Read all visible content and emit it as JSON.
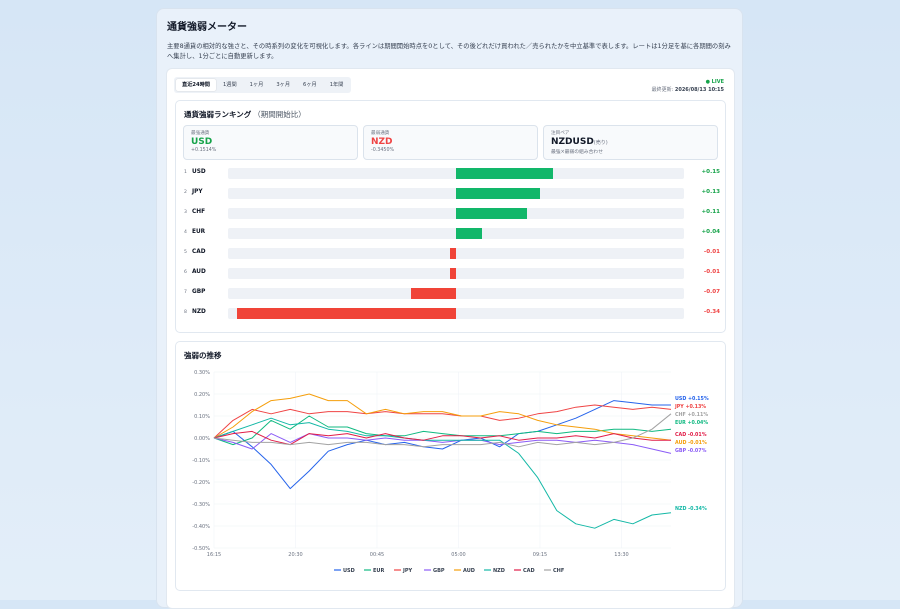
{
  "page": {
    "title": "通貨強弱メーター",
    "description": "主要8通貨の相対的な強さと、その時系列の変化を可視化します。各ラインは期間開始時点を0として、その後どれだけ買われた／売られたかを中立基準で表します。レートは1分足を基に各期間の刻みへ集計し、1分ごとに自動更新します。"
  },
  "tabs": [
    {
      "label": "直近24時間",
      "active": true
    },
    {
      "label": "1週間",
      "active": false
    },
    {
      "label": "1ヶ月",
      "active": false
    },
    {
      "label": "3ヶ月",
      "active": false
    },
    {
      "label": "6ヶ月",
      "active": false
    },
    {
      "label": "1年間",
      "active": false
    }
  ],
  "status": {
    "live": "● LIVE",
    "updated_label": "最終更新:",
    "updated_value": "2026/08/13 10:15"
  },
  "ranking": {
    "title": "通貨強弱ランキング",
    "subtitle": "（期間開始比）",
    "strongest": {
      "label": "最強通貨",
      "currency": "USD",
      "change": "+0.1514%"
    },
    "weakest": {
      "label": "最弱通貨",
      "currency": "NZD",
      "change": "-0.3450%"
    },
    "pair": {
      "label": "注目ペア",
      "pair": "NZDUSD",
      "direction": "(売り)",
      "note": "最強×最弱の組み合わせ"
    },
    "rows": [
      {
        "rank": "1",
        "currency": "USD",
        "value": 0.15,
        "label": "+0.15"
      },
      {
        "rank": "2",
        "currency": "JPY",
        "value": 0.13,
        "label": "+0.13"
      },
      {
        "rank": "3",
        "currency": "CHF",
        "value": 0.11,
        "label": "+0.11"
      },
      {
        "rank": "4",
        "currency": "EUR",
        "value": 0.04,
        "label": "+0.04"
      },
      {
        "rank": "5",
        "currency": "CAD",
        "value": -0.01,
        "label": "-0.01"
      },
      {
        "rank": "6",
        "currency": "AUD",
        "value": -0.01,
        "label": "-0.01"
      },
      {
        "rank": "7",
        "currency": "GBP",
        "value": -0.07,
        "label": "-0.07"
      },
      {
        "rank": "8",
        "currency": "NZD",
        "value": -0.34,
        "label": "-0.34"
      }
    ],
    "colors": {
      "positive": "#12b76a",
      "negative": "#f04438"
    }
  },
  "chart_data": {
    "type": "line",
    "title": "強弱の推移",
    "x_ticks": [
      "16:15",
      "20:30",
      "00:45",
      "05:00",
      "09:15",
      "13:30"
    ],
    "y_ticks": [
      "0.30%",
      "0.20%",
      "0.10%",
      "0.00%",
      "-0.10%",
      "-0.20%",
      "-0.30%",
      "-0.40%",
      "-0.50%"
    ],
    "ylim": [
      -0.5,
      0.3
    ],
    "grid": true,
    "legend": "bottom",
    "series": [
      {
        "name": "USD",
        "color": "#2563eb",
        "end_label": "USD +0.15%",
        "values": [
          0,
          0.03,
          -0.04,
          -0.12,
          -0.23,
          -0.15,
          -0.06,
          -0.03,
          -0.01,
          -0.03,
          -0.02,
          -0.04,
          -0.05,
          -0.01,
          0.0,
          -0.04,
          0.02,
          0.03,
          0.06,
          0.09,
          0.13,
          0.17,
          0.16,
          0.15,
          0.15
        ]
      },
      {
        "name": "EUR",
        "color": "#10b981",
        "end_label": "EUR +0.04%",
        "values": [
          0,
          -0.03,
          0.0,
          0.08,
          0.04,
          0.1,
          0.05,
          0.05,
          0.02,
          0.01,
          0.01,
          0.03,
          0.02,
          0.01,
          0.01,
          0.01,
          0.02,
          0.03,
          0.02,
          0.03,
          0.03,
          0.04,
          0.04,
          0.03,
          0.04
        ]
      },
      {
        "name": "JPY",
        "color": "#ef4444",
        "end_label": "JPY +0.13%",
        "values": [
          0,
          0.08,
          0.13,
          0.11,
          0.13,
          0.11,
          0.12,
          0.12,
          0.11,
          0.12,
          0.11,
          0.11,
          0.11,
          0.1,
          0.1,
          0.08,
          0.09,
          0.11,
          0.12,
          0.14,
          0.15,
          0.14,
          0.13,
          0.14,
          0.13
        ]
      },
      {
        "name": "GBP",
        "color": "#8b5cf6",
        "end_label": "GBP -0.07%",
        "values": [
          0,
          -0.02,
          -0.05,
          0.02,
          -0.02,
          0.02,
          0.0,
          0.0,
          -0.01,
          0.0,
          -0.01,
          -0.01,
          -0.02,
          -0.01,
          -0.01,
          -0.03,
          -0.02,
          -0.01,
          -0.01,
          -0.02,
          -0.01,
          -0.02,
          -0.03,
          -0.05,
          -0.07
        ]
      },
      {
        "name": "AUD",
        "color": "#f59e0b",
        "end_label": "AUD -0.01%",
        "values": [
          0,
          0.05,
          0.12,
          0.17,
          0.18,
          0.2,
          0.17,
          0.17,
          0.11,
          0.13,
          0.11,
          0.12,
          0.12,
          0.1,
          0.1,
          0.12,
          0.11,
          0.08,
          0.06,
          0.05,
          0.04,
          0.02,
          0.01,
          0.0,
          -0.01
        ]
      },
      {
        "name": "NZD",
        "color": "#14b8a6",
        "end_label": "NZD -0.34%",
        "values": [
          0,
          0.03,
          0.06,
          0.09,
          0.06,
          0.07,
          0.04,
          0.03,
          0.01,
          0.01,
          0.0,
          -0.01,
          -0.01,
          -0.01,
          -0.01,
          -0.01,
          -0.07,
          -0.18,
          -0.33,
          -0.39,
          -0.41,
          -0.37,
          -0.39,
          -0.35,
          -0.34
        ]
      },
      {
        "name": "CAD",
        "color": "#e11d48",
        "end_label": "CAD -0.01%",
        "values": [
          0,
          0.02,
          0.03,
          -0.01,
          -0.03,
          0.02,
          0.01,
          0.02,
          0.0,
          0.02,
          0.0,
          -0.01,
          0.01,
          0.01,
          0.0,
          0.01,
          -0.01,
          0.0,
          0.0,
          0.01,
          0.0,
          0.02,
          0.0,
          -0.01,
          -0.01
        ]
      },
      {
        "name": "CHF",
        "color": "#a3a3a3",
        "end_label": "CHF +0.11%",
        "values": [
          0,
          -0.01,
          -0.02,
          -0.02,
          -0.03,
          -0.02,
          -0.03,
          -0.02,
          -0.02,
          -0.03,
          -0.03,
          -0.04,
          -0.03,
          -0.03,
          -0.03,
          -0.02,
          -0.04,
          -0.02,
          -0.03,
          -0.02,
          -0.03,
          -0.02,
          0.0,
          0.04,
          0.11
        ]
      }
    ],
    "label_order": [
      "USD",
      "JPY",
      "CHF",
      "EUR",
      "CAD",
      "AUD",
      "GBP",
      "NZD"
    ]
  }
}
